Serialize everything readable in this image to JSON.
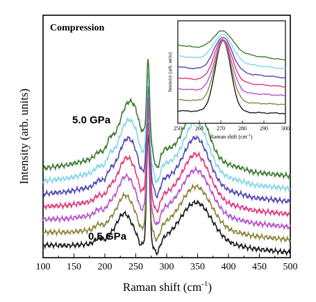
{
  "chart_data": [
    {
      "type": "line",
      "title": "Compression",
      "xlabel": "Raman shift (cm",
      "xlabel_sup": "-1",
      "xlabel_close": ")",
      "ylabel": "Intensity (arb. units)",
      "xlim": [
        100,
        500
      ],
      "xticks": [
        100,
        150,
        200,
        250,
        300,
        350,
        400,
        450,
        500
      ],
      "yticks_shown": false,
      "grid": false,
      "annotations": [
        {
          "text": "5.0 GPa",
          "applies_to": "top trace"
        },
        {
          "text": "0.5 GPa",
          "applies_to": "bottom trace"
        }
      ],
      "series": [
        {
          "color": "#1a1a1a",
          "offset": 0.0,
          "bg": 0.04,
          "gap": 0.03
        },
        {
          "color": "#8b8438",
          "offset": 0.045,
          "bg": 0.045,
          "gap": 0.04
        },
        {
          "color": "#b54fcf",
          "offset": 0.09,
          "bg": 0.05,
          "gap": 0.055
        },
        {
          "color": "#e0357b",
          "offset": 0.135,
          "bg": 0.055,
          "gap": 0.065
        },
        {
          "color": "#4f46b8",
          "offset": 0.18,
          "bg": 0.06,
          "gap": 0.08
        },
        {
          "color": "#7fd6e8",
          "offset": 0.225,
          "bg": 0.065,
          "gap": 0.09
        },
        {
          "color": "#3f7a2e",
          "offset": 0.27,
          "bg": 0.07,
          "gap": 0.1
        }
      ]
    },
    {
      "type": "line",
      "role": "inset",
      "xlabel": "Raman shift (cm",
      "xlabel_sup": "-1",
      "xlabel_close": ")",
      "ylabel": "Intensity (arb. units)",
      "xlim": [
        250,
        300
      ],
      "xticks": [
        250,
        260,
        270,
        280,
        290,
        300
      ],
      "yticks_shown": false
    }
  ]
}
